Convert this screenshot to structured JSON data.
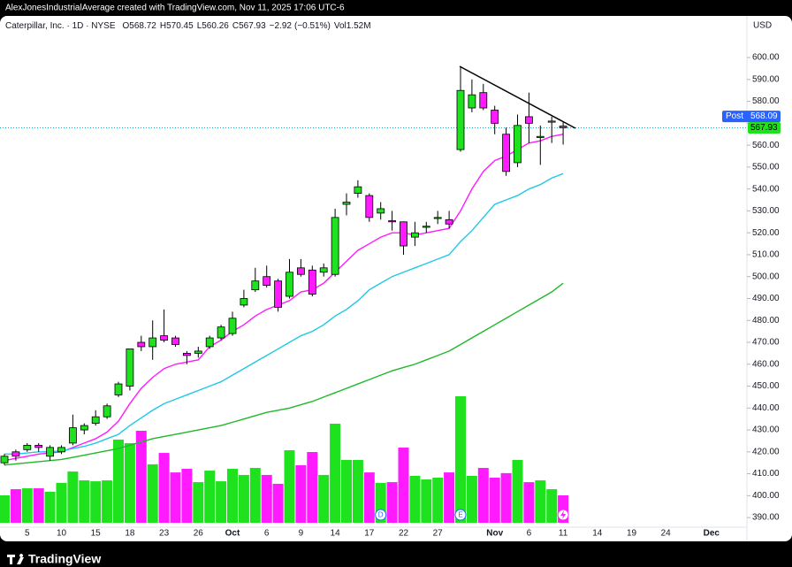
{
  "header": "AlexJonesIndustrialAverage created with TradingView.com, Nov 11, 2025 17:06 UTC-6",
  "brand": "TradingView",
  "chart_data": {
    "type": "candlestick",
    "symbol": "Caterpillar, Inc. · 1D · NYSE",
    "ohlc_letters": [
      "O",
      "H",
      "L",
      "C"
    ],
    "change": {
      "value": -2.92,
      "label": "−2.92"
    },
    "change_pct": {
      "value": -0.51,
      "label": "(−0.51%)"
    },
    "volume_prefix": "Vol",
    "volume_last": {
      "value": 1.52,
      "label": "1.52M"
    },
    "currency": "USD",
    "post": {
      "label": "Post",
      "value": 568.09
    },
    "up_color": "#1ee21e",
    "down_color": "#ff1aff",
    "categories": [
      null,
      null,
      "5",
      null,
      null,
      "10",
      null,
      null,
      "15",
      null,
      null,
      "18",
      null,
      null,
      "23",
      null,
      null,
      "26",
      null,
      null,
      "Oct",
      null,
      null,
      "6",
      null,
      null,
      "9",
      null,
      null,
      "14",
      null,
      null,
      "17",
      null,
      null,
      "22",
      null,
      null,
      "27",
      null,
      null,
      null,
      null,
      "Nov",
      null,
      null,
      "6",
      null,
      null,
      "11",
      null,
      null,
      "14",
      null,
      null,
      "19",
      null,
      null,
      "24",
      null,
      null,
      null,
      "Dec"
    ],
    "open": [
      415,
      420,
      421,
      423,
      418,
      420,
      424,
      430,
      433,
      436,
      446,
      450,
      470,
      468,
      473,
      472,
      465,
      465,
      468,
      472,
      474,
      487,
      494,
      500,
      498,
      491,
      504,
      503,
      502,
      501,
      533,
      538,
      537,
      529,
      525.5,
      525,
      518,
      522.5,
      526.5,
      526,
      558,
      577,
      584,
      576,
      565,
      552,
      573,
      563.5,
      570.5,
      568.72,
      null,
      null,
      null,
      null,
      null,
      null,
      null,
      null,
      null,
      null,
      null,
      null,
      null
    ],
    "high": [
      419,
      421,
      424,
      424,
      423,
      423,
      437,
      433,
      439,
      442,
      452,
      467,
      473,
      480,
      485,
      473,
      466,
      468,
      473,
      478,
      484,
      494,
      504,
      505,
      499,
      508,
      508,
      505,
      506,
      531,
      538,
      544,
      538,
      534,
      530,
      525,
      525,
      525,
      530,
      530,
      596,
      590,
      588,
      578,
      568,
      574,
      584,
      569,
      573,
      570.45,
      null,
      null,
      null,
      null,
      null,
      null,
      null,
      null,
      null,
      null,
      null,
      null,
      null
    ],
    "low": [
      414,
      416,
      420,
      420,
      416,
      419,
      423,
      428,
      432,
      435,
      445,
      448,
      466,
      462,
      470,
      468,
      460,
      463,
      467,
      471,
      473,
      486,
      493,
      495,
      484,
      490,
      500,
      491,
      500,
      500,
      528,
      536,
      525,
      526,
      521,
      510,
      514,
      520,
      524,
      522,
      557,
      575,
      576,
      565,
      546,
      550,
      561,
      551,
      561,
      560.26,
      null,
      null,
      null,
      null,
      null,
      null,
      null,
      null,
      null,
      null,
      null,
      null,
      null
    ],
    "close": [
      418,
      418,
      423,
      422,
      422,
      422,
      431,
      432,
      436,
      441,
      451,
      467,
      468,
      472,
      471,
      469,
      464,
      466,
      472,
      477,
      481,
      490,
      498,
      496,
      486,
      502,
      501,
      492,
      504,
      527,
      534,
      541,
      527,
      531,
      525,
      514,
      520,
      523,
      527,
      524,
      585,
      583,
      577,
      570,
      548,
      569,
      570,
      564,
      571,
      567.93,
      null,
      null,
      null,
      null,
      null,
      null,
      null,
      null,
      null,
      null,
      null,
      null,
      null
    ],
    "volume": [
      1.52,
      1.86,
      1.91,
      1.91,
      1.72,
      2.21,
      2.84,
      2.35,
      2.3,
      2.35,
      4.61,
      4.41,
      5.1,
      3.24,
      3.87,
      2.79,
      2.99,
      2.25,
      2.89,
      2.3,
      2.99,
      2.65,
      3.04,
      2.65,
      2.16,
      4.02,
      3.19,
      3.92,
      2.65,
      5.49,
      3.48,
      3.48,
      2.79,
      2.21,
      2.25,
      4.17,
      2.6,
      2.4,
      2.5,
      2.79,
      7.01,
      2.6,
      3.04,
      2.5,
      2.75,
      3.48,
      2.25,
      2.35,
      1.86,
      1.52,
      null,
      null,
      null,
      null,
      null,
      null,
      null,
      null,
      null,
      null,
      null,
      null,
      null
    ],
    "vlim": [
      0,
      7.5
    ],
    "moving_averages": [
      {
        "color": "#ff1aff",
        "values": [
          416,
          417,
          418,
          419,
          419.5,
          420,
          422,
          424,
          426,
          429,
          434,
          442,
          449,
          454,
          458,
          460,
          461,
          462,
          468,
          471,
          475,
          478,
          482,
          485,
          487,
          489,
          493,
          494,
          497,
          502,
          507,
          512,
          515,
          518,
          520,
          520,
          519,
          520,
          521,
          522,
          530,
          540,
          548,
          553,
          555,
          558,
          561,
          562,
          564,
          565,
          null,
          null,
          null,
          null,
          null,
          null,
          null,
          null,
          null,
          null,
          null,
          null,
          null
        ]
      },
      {
        "color": "#1ec8e6",
        "values": [
          419,
          419,
          419.5,
          420,
          420,
          420.5,
          421.5,
          422.5,
          424,
          426,
          428,
          432,
          435.5,
          439,
          442,
          444,
          446,
          448,
          450,
          452,
          455,
          458,
          461,
          464,
          467,
          470,
          473,
          475,
          478,
          482,
          485,
          489,
          494,
          497,
          500,
          502,
          504,
          506,
          508,
          510,
          516,
          521,
          527,
          533,
          535,
          537,
          540,
          542,
          545,
          547,
          null,
          null,
          null,
          null,
          null,
          null,
          null,
          null,
          null,
          null,
          null,
          null,
          null
        ]
      },
      {
        "color": "#1fb82a",
        "values": [
          414,
          414.5,
          415,
          415.5,
          416,
          416.5,
          417.5,
          418.5,
          419.5,
          420.5,
          421.5,
          423,
          424.5,
          426,
          427,
          428,
          429,
          430,
          431,
          432,
          433.5,
          435,
          436.5,
          438,
          439,
          440,
          441.5,
          443,
          445,
          447,
          449,
          451,
          453,
          455,
          457,
          458.5,
          460,
          462,
          464,
          466,
          469,
          472,
          475,
          478,
          481,
          484,
          487,
          490,
          493,
          497,
          null,
          null,
          null,
          null,
          null,
          null,
          null,
          null,
          null,
          null,
          null,
          null,
          null
        ]
      }
    ],
    "events": [
      {
        "index": 33,
        "label": "D"
      },
      {
        "index": 40,
        "label": "E"
      }
    ],
    "ylim": [
      385.6,
      618.2
    ],
    "yticks": [
      {
        "value": 390,
        "label": "390.00"
      },
      {
        "value": 400,
        "label": "400.00"
      },
      {
        "value": 410,
        "label": "410.00"
      },
      {
        "value": 420,
        "label": "420.00"
      },
      {
        "value": 430,
        "label": "430.00"
      },
      {
        "value": 440,
        "label": "440.00"
      },
      {
        "value": 450,
        "label": "450.00"
      },
      {
        "value": 460,
        "label": "460.00"
      },
      {
        "value": 470,
        "label": "470.00"
      },
      {
        "value": 480,
        "label": "480.00"
      },
      {
        "value": 490,
        "label": "490.00"
      },
      {
        "value": 500,
        "label": "500.00"
      },
      {
        "value": 510,
        "label": "510.00"
      },
      {
        "value": 520,
        "label": "520.00"
      },
      {
        "value": 530,
        "label": "530.00"
      },
      {
        "value": 540,
        "label": "540.00"
      },
      {
        "value": 550,
        "label": "550.00"
      },
      {
        "value": 560,
        "label": "560.00"
      },
      {
        "value": 570,
        "label": "570.00"
      },
      {
        "value": 580,
        "label": "580.00"
      },
      {
        "value": 590,
        "label": "590.00"
      },
      {
        "value": 600,
        "label": "600.00"
      }
    ]
  }
}
